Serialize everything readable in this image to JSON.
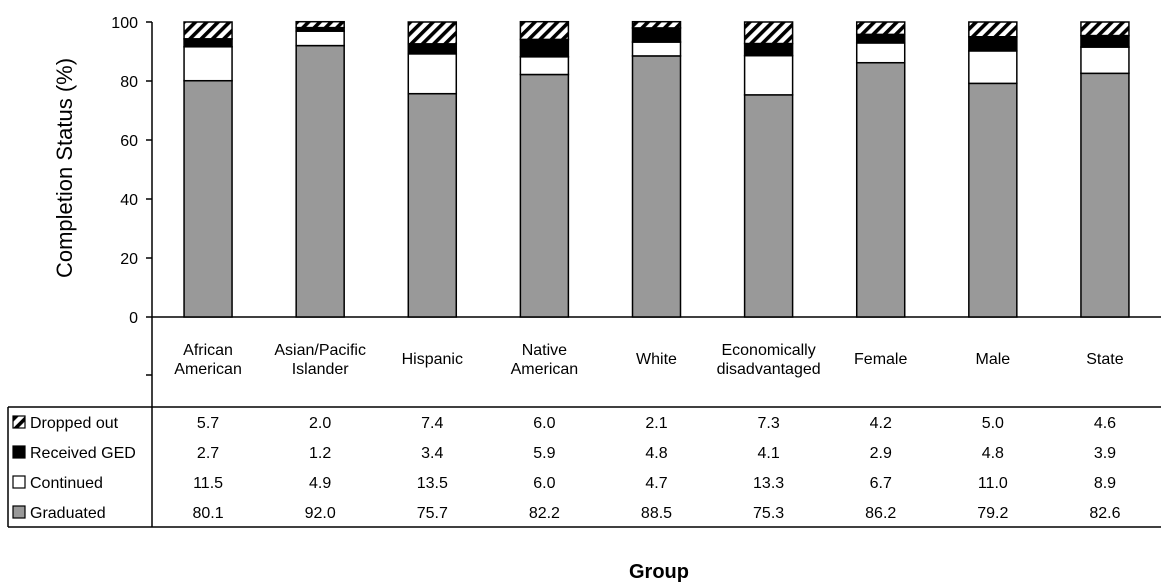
{
  "chart_data": {
    "type": "bar",
    "stacked": true,
    "ylabel": "Completion Status (%)",
    "xlabel": "Group",
    "ylim": [
      0,
      100
    ],
    "yticks": [
      "0",
      "20",
      "40",
      "60",
      "80",
      "100"
    ],
    "grid": false,
    "legend": "data-table",
    "categories": [
      [
        "African",
        "American"
      ],
      [
        "Asian/Pacific",
        "Islander"
      ],
      [
        "Hispanic"
      ],
      [
        "Native",
        "American"
      ],
      [
        "White"
      ],
      [
        "Economically",
        "disadvantaged"
      ],
      [
        "Female"
      ],
      [
        "Male"
      ],
      [
        "State"
      ]
    ],
    "series": [
      {
        "name": "Graduated",
        "fill": "gray",
        "color": "#999999",
        "values": [
          80.1,
          92.0,
          75.7,
          82.2,
          88.5,
          75.3,
          86.2,
          79.2,
          82.6
        ],
        "labels": [
          "80.1",
          "92.0",
          "75.7",
          "82.2",
          "88.5",
          "75.3",
          "86.2",
          "79.2",
          "82.6"
        ]
      },
      {
        "name": "Continued",
        "fill": "white",
        "color": "#ffffff",
        "values": [
          11.5,
          4.9,
          13.5,
          6.0,
          4.7,
          13.3,
          6.7,
          11.0,
          8.9
        ],
        "labels": [
          "11.5",
          "4.9",
          "13.5",
          "6.0",
          "4.7",
          "13.3",
          "6.7",
          "11.0",
          "8.9"
        ]
      },
      {
        "name": "Received GED",
        "fill": "black",
        "color": "#000000",
        "values": [
          2.7,
          1.2,
          3.4,
          5.9,
          4.8,
          4.1,
          2.9,
          4.8,
          3.9
        ],
        "labels": [
          "2.7",
          "1.2",
          "3.4",
          "5.9",
          "4.8",
          "4.1",
          "2.9",
          "4.8",
          "3.9"
        ]
      },
      {
        "name": "Dropped out",
        "fill": "diagonal-hatch",
        "color": "#000000",
        "values": [
          5.7,
          2.0,
          7.4,
          6.0,
          2.1,
          7.3,
          4.2,
          5.0,
          4.6
        ],
        "labels": [
          "5.7",
          "2.0",
          "7.4",
          "6.0",
          "2.1",
          "7.3",
          "4.2",
          "5.0",
          "4.6"
        ]
      }
    ],
    "table_row_order": [
      "Dropped out",
      "Received GED",
      "Continued",
      "Graduated"
    ]
  }
}
